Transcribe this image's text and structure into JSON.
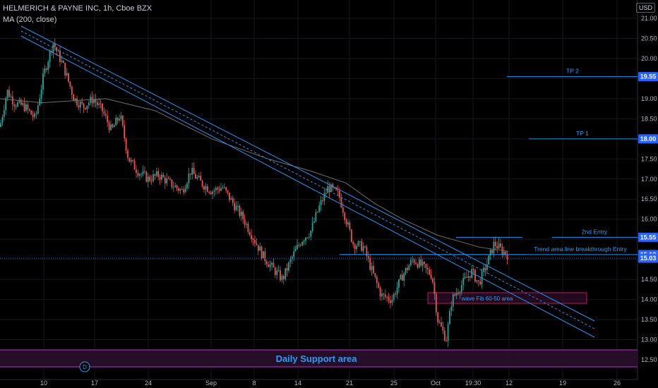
{
  "header": {
    "title": "HELMERICH & PAYNE INC, 1h, Cboe BZX",
    "indicator": "MA (200, close)",
    "currency": "USD"
  },
  "chart_data": {
    "type": "candlestick",
    "x_ticks": [
      "10",
      "17",
      "24",
      "Sep",
      "8",
      "14",
      "21",
      "25",
      "Oct",
      "19:30",
      "12",
      "19",
      "26"
    ],
    "y_ticks": [
      21.0,
      20.5,
      20.0,
      19.5,
      19.0,
      18.5,
      18.0,
      17.5,
      17.0,
      16.5,
      16.0,
      15.5,
      15.0,
      14.5,
      14.0,
      13.5,
      13.0,
      12.5
    ],
    "ylim": [
      12.2,
      21.5
    ],
    "price_tags": [
      {
        "value": "19.55",
        "color": "#2962ff"
      },
      {
        "value": "18.00",
        "color": "#2962ff"
      },
      {
        "value": "15.55",
        "color": "#2962ff"
      },
      {
        "value": "15.12",
        "color": "#2962ff"
      },
      {
        "value": "15.03",
        "color": "#2962ff"
      }
    ],
    "levels": [
      {
        "label": "TP 2",
        "price": 19.55
      },
      {
        "label": "TP 1",
        "price": 18.0
      },
      {
        "label": "2nd Entry",
        "price": 15.55
      },
      {
        "label": "Trend area line breakthrough  Entry",
        "price": 15.12
      }
    ],
    "annotations": {
      "fib_box": "wave Fib 60-50 area",
      "support": "Daily Support area",
      "marker": "D"
    },
    "colors": {
      "up": "#26a69a",
      "down": "#ef5350",
      "ma": "#6e6e6e",
      "drawing": "#2196f3",
      "support": "#9c27b0"
    }
  }
}
